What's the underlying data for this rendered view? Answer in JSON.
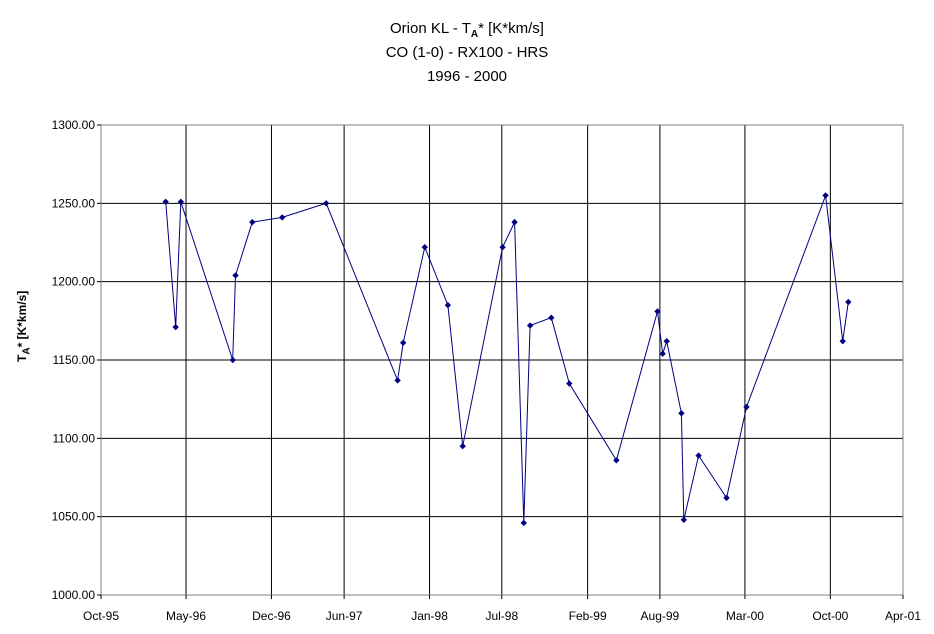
{
  "titles": {
    "line1_main": "Orion KL - T",
    "line1_sub": "A",
    "line1_rest": "* [K*km/s]",
    "line2": "CO (1-0) - RX100 - HRS",
    "line3": "1996 - 2000"
  },
  "axis": {
    "y_label_main": "T",
    "y_label_sub": "A",
    "y_label_rest": "* [K*km/s]"
  },
  "chart_data": {
    "type": "line",
    "title": "Orion KL - T A* [K*km/s] / CO (1-0) - RX100 - HRS / 1996 - 2000",
    "xlabel": "",
    "ylabel": "T A* [K*km/s]",
    "x_ticks": [
      "Oct-95",
      "May-96",
      "Dec-96",
      "Jun-97",
      "Jan-98",
      "Jul-98",
      "Feb-99",
      "Aug-99",
      "Mar-00",
      "Oct-00",
      "Apr-01"
    ],
    "x_tick_dates": [
      "1995-10-01",
      "1996-05-01",
      "1996-12-01",
      "1997-06-01",
      "1998-01-01",
      "1998-07-01",
      "1999-02-01",
      "1999-08-01",
      "2000-03-01",
      "2000-10-01",
      "2001-04-01"
    ],
    "xlim": [
      "1995-10-01",
      "2001-04-01"
    ],
    "ylim": [
      1000,
      1300
    ],
    "y_ticks": [
      "1000.00",
      "1050.00",
      "1100.00",
      "1150.00",
      "1200.00",
      "1250.00",
      "1300.00"
    ],
    "grid": true,
    "legend": "none",
    "line_color": "#000080",
    "series": [
      {
        "x": [
          "1996-03-11",
          "1996-04-05",
          "1996-04-18",
          "1996-08-26",
          "1996-09-02",
          "1996-10-14",
          "1996-12-28",
          "1997-04-17",
          "1997-10-13",
          "1997-10-27",
          "1997-12-20",
          "1998-02-16",
          "1998-03-25",
          "1998-07-03",
          "1998-08-02",
          "1998-08-25",
          "1998-09-10",
          "1998-11-02",
          "1998-12-17",
          "1999-04-14",
          "1999-07-26",
          "1999-08-08",
          "1999-08-18",
          "1999-09-24",
          "1999-09-30",
          "1999-11-06",
          "2000-01-15",
          "2000-03-05",
          "2000-09-19",
          "2000-11-01",
          "2000-11-15"
        ],
        "y": [
          1251,
          1171,
          1251,
          1150,
          1204,
          1238,
          1241,
          1250,
          1137,
          1161,
          1222,
          1185,
          1095,
          1222,
          1238,
          1046,
          1172,
          1177,
          1135,
          1086,
          1181,
          1154,
          1162,
          1116,
          1048,
          1089,
          1062,
          1120,
          1255,
          1162,
          1187
        ]
      }
    ]
  }
}
